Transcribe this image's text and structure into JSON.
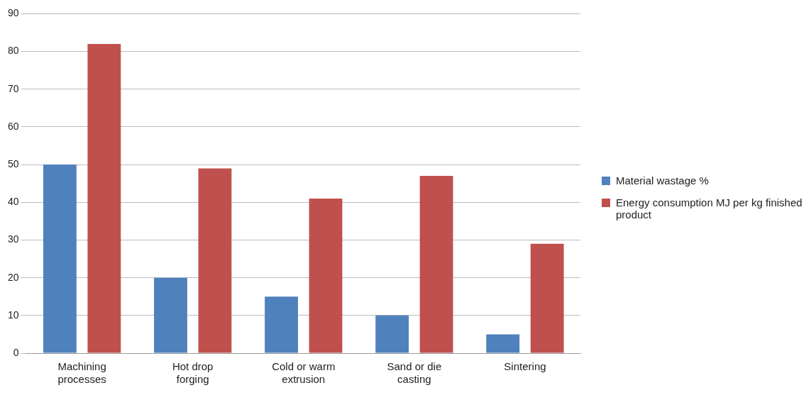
{
  "chart_data": {
    "type": "bar",
    "categories": [
      "Machining\nprocesses",
      "Hot drop\nforging",
      "Cold or warm\nextrusion",
      "Sand or die\ncasting",
      "Sintering"
    ],
    "series": [
      {
        "name": "Material wastage %",
        "color": "#4f81bd",
        "values": [
          50,
          20,
          15,
          10,
          5
        ]
      },
      {
        "name": "Energy consumption MJ per kg finished product",
        "color": "#c0504d",
        "values": [
          82,
          49,
          41,
          47,
          29
        ]
      }
    ],
    "ylim": [
      0,
      90
    ],
    "yticks": [
      0,
      10,
      20,
      30,
      40,
      50,
      60,
      70,
      80,
      90
    ],
    "grid": "y",
    "legend": "right"
  }
}
